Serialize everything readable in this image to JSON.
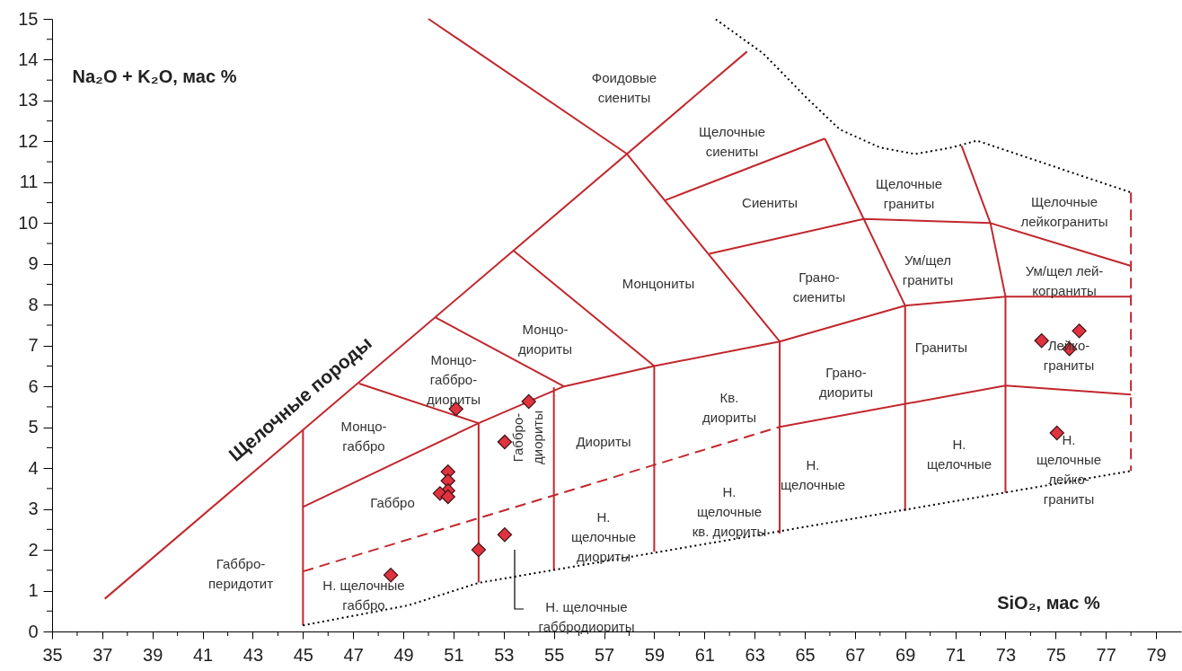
{
  "chart_data": {
    "type": "scatter",
    "xlabel": "SiO₂, мас %",
    "ylabel": "Na₂O + K₂O, мас %",
    "xlim": [
      35,
      80
    ],
    "ylim": [
      0,
      15
    ],
    "xticks": [
      35,
      {
        "value": 36,
        "label": null
      },
      37,
      {
        "value": 38,
        "label": null
      },
      39,
      {
        "value": 40,
        "label": null
      },
      41,
      {
        "value": 42,
        "label": null
      },
      43,
      {
        "value": 44,
        "label": null
      },
      45,
      {
        "value": 46,
        "label": null
      },
      47,
      {
        "value": 48,
        "label": null
      },
      49,
      {
        "value": 50,
        "label": null
      },
      51,
      {
        "value": 52,
        "label": null
      },
      53,
      {
        "value": 54,
        "label": null
      },
      55,
      {
        "value": 56,
        "label": null
      },
      57,
      {
        "value": 58,
        "label": null
      },
      59,
      {
        "value": 60,
        "label": null
      },
      61,
      {
        "value": 62,
        "label": null
      },
      63,
      {
        "value": 64,
        "label": null
      },
      65,
      {
        "value": 66,
        "label": null
      },
      67,
      {
        "value": 68,
        "label": null
      },
      69,
      {
        "value": 70,
        "label": null
      },
      71,
      {
        "value": 72,
        "label": null
      },
      73,
      {
        "value": 74,
        "label": null
      },
      75,
      {
        "value": 76,
        "label": null
      },
      77,
      {
        "value": 78,
        "label": null
      },
      79
    ],
    "yticks": [
      0,
      {
        "value": 0.5,
        "label": null
      },
      1,
      {
        "value": 1.5,
        "label": null
      },
      2,
      {
        "value": 2.5,
        "label": null
      },
      3,
      {
        "value": 3.5,
        "label": null
      },
      4,
      {
        "value": 4.5,
        "label": null
      },
      5,
      {
        "value": 5.5,
        "label": null
      },
      6,
      {
        "value": 6.5,
        "label": null
      },
      7,
      {
        "value": 7.5,
        "label": null
      },
      8,
      {
        "value": 8.5,
        "label": null
      },
      9,
      {
        "value": 9.5,
        "label": null
      },
      10,
      {
        "value": 10.5,
        "label": null
      },
      11,
      {
        "value": 11.5,
        "label": null
      },
      12,
      {
        "value": 12.5,
        "label": null
      },
      13,
      {
        "value": 13.5,
        "label": null
      },
      14,
      {
        "value": 14.5,
        "label": null
      },
      15
    ],
    "series": [
      {
        "type": "line",
        "color": "#c1272d",
        "line_style": "solid",
        "x": [
          37.1,
          62.7
        ],
        "values": [
          0.8,
          14.2
        ]
      },
      {
        "type": "line",
        "color": "#c1272d",
        "line_style": "solid",
        "x": [
          50.0,
          57.9,
          64.0,
          64.0
        ],
        "values": [
          15.0,
          11.7,
          7.1,
          2.4
        ]
      },
      {
        "type": "line",
        "color": "#c1272d",
        "line_style": "solid",
        "x": [
          59.4,
          65.8
        ],
        "values": [
          10.55,
          12.07
        ]
      },
      {
        "type": "line",
        "color": "#c1272d",
        "line_style": "solid",
        "x": [
          61.2,
          67.35,
          72.4,
          78
        ],
        "values": [
          9.25,
          10.1,
          10.0,
          8.95
        ]
      },
      {
        "type": "line",
        "color": "#c1272d",
        "line_style": "solid",
        "x": [
          65.8,
          67.35,
          69.0,
          69.0
        ],
        "values": [
          12.07,
          10.1,
          7.98,
          2.95
        ]
      },
      {
        "type": "line",
        "color": "#c1272d",
        "line_style": "solid",
        "x": [
          71.25,
          72.4,
          73,
          73
        ],
        "values": [
          11.89,
          10.0,
          8.2,
          3.4
        ]
      },
      {
        "type": "line",
        "color": "#c1272d",
        "line_style": "solid",
        "x": [
          45,
          52,
          55.4,
          59,
          64,
          69,
          73,
          78
        ],
        "values": [
          3.05,
          5.1,
          6.0,
          6.5,
          7.1,
          7.98,
          8.2,
          8.2
        ]
      },
      {
        "type": "line",
        "color": "#c1272d",
        "line_style": "solid",
        "x": [
          47.24,
          52,
          52
        ],
        "values": [
          6.07,
          5.1,
          1.2
        ]
      },
      {
        "type": "line",
        "color": "#c1272d",
        "line_style": "solid",
        "x": [
          50.28,
          55.4
        ],
        "values": [
          7.69,
          6.0
        ]
      },
      {
        "type": "line",
        "color": "#c1272d",
        "line_style": "solid",
        "x": [
          53.4,
          59,
          59
        ],
        "values": [
          9.32,
          6.5,
          1.95
        ]
      },
      {
        "type": "line",
        "color": "#c1272d",
        "line_style": "solid",
        "x": [
          64,
          73,
          78
        ],
        "values": [
          5.01,
          6.02,
          5.8
        ]
      },
      {
        "type": "line",
        "color": "#c1272d",
        "line_style": "dashed",
        "x": [
          45,
          64
        ],
        "values": [
          1.47,
          5.01
        ]
      },
      {
        "type": "line",
        "color": "#c1272d",
        "line_style": "solid",
        "x": [
          45,
          45
        ],
        "values": [
          4.93,
          0.15
        ]
      },
      {
        "type": "line",
        "color": "#c1272d",
        "line_style": "solid",
        "x": [
          55,
          55
        ],
        "values": [
          5.98,
          1.5
        ]
      },
      {
        "type": "line",
        "color": "#c1272d",
        "line_style": "dashed",
        "x": [
          78,
          78
        ],
        "values": [
          10.75,
          3.93
        ]
      },
      {
        "type": "line",
        "color": "#000000",
        "line_style": "dotted",
        "x": [
          45,
          49.2,
          52,
          78
        ],
        "values": [
          0.15,
          0.64,
          1.19,
          3.93
        ]
      },
      {
        "type": "line",
        "color": "#000000",
        "line_style": "dotted",
        "x": [
          61.45,
          63.35,
          65.1,
          66.4,
          68.0,
          69.4,
          70.86,
          71.86,
          78
        ],
        "values": [
          14.99,
          14.15,
          13.05,
          12.29,
          11.85,
          11.69,
          11.85,
          12.02,
          10.75
        ]
      },
      {
        "color": "#e0323f",
        "marker": "diamond",
        "x": [
          51.1,
          54.0,
          53.04,
          50.78,
          50.78,
          50.78,
          50.46,
          50.78,
          53.04,
          52.0,
          48.5,
          74.44,
          75.94,
          75.55,
          75.05
        ],
        "values": [
          5.45,
          5.63,
          4.64,
          3.91,
          3.69,
          3.45,
          3.38,
          3.3,
          2.37,
          2.0,
          1.38,
          7.12,
          7.36,
          6.92,
          4.86
        ]
      }
    ],
    "annotations": [
      "Щелочные породы",
      "Фоидовые\nсиениты",
      "Щелочные\nсиениты",
      "Сиениты",
      "Щелочные\nграниты",
      "Щелочные\nлейкограниты",
      "Монцониты",
      "Грано-\nсиениты",
      "Ум/щел\nграниты",
      "Ум/щел лей-\nкограниты",
      "Монцо-\nдиориты",
      "Монцо-\nгаббро-\nдиориты",
      "Граниты",
      "Лейко-\nграниты",
      "Грано-\nдиориты",
      "Кв.\nдиориты",
      "Монцо-\nгаббро",
      "Диориты",
      "Габбро",
      "Габбро-\nдиориты",
      "Н.\nщелочные",
      "Н.\nщелочные",
      "Н.\nщелочные\nлейко-\nграниты",
      "Н.\nщелочные\nкв. диориты",
      "Н.\nщелочные\nдиориты",
      "Габбро-\nперидотит",
      "Н. щелочные\nгаббро",
      "Н. щелочные\nгаббродиориты"
    ]
  }
}
